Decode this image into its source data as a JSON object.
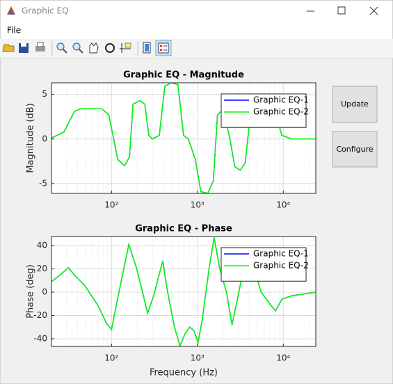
{
  "window": {
    "title": "Graphic EQ",
    "menu": [
      "File"
    ],
    "buttons": [
      "Update",
      "Configure"
    ]
  },
  "chart_data": [
    {
      "type": "line",
      "title": "Graphic EQ - Magnitude",
      "ylabel": "Magnitude (dB)",
      "x": [
        20,
        28,
        37,
        44,
        77,
        93,
        106,
        118,
        142,
        162,
        178,
        214,
        244,
        272,
        299,
        360,
        418,
        494,
        594,
        690,
        785,
        946,
        1097,
        1321,
        1532,
        1713,
        1988,
        2393,
        2723,
        3162,
        3597,
        4180,
        6650,
        8000,
        9640,
        12700,
        23900
      ],
      "series": [
        {
          "name": "Graphic EQ-1",
          "color": "#0000ff",
          "values": [
            0.1,
            0.8,
            3.1,
            3.4,
            3.4,
            2.7,
            0,
            -2.3,
            -3.0,
            -2.0,
            3.9,
            4.3,
            3.9,
            0.4,
            0,
            0.4,
            5.9,
            6.3,
            6.1,
            0.4,
            0,
            -2.3,
            -5.9,
            -6.1,
            -4.7,
            2.7,
            3.3,
            0,
            -3.1,
            -3.5,
            -2.7,
            3.1,
            3.9,
            3.1,
            0.4,
            0,
            0
          ]
        },
        {
          "name": "Graphic EQ-2",
          "color": "#00ff00",
          "values": [
            0.1,
            0.8,
            3.1,
            3.4,
            3.4,
            2.7,
            0,
            -2.3,
            -3.0,
            -2.0,
            3.9,
            4.3,
            3.9,
            0.4,
            0,
            0.4,
            5.9,
            6.3,
            6.1,
            0.4,
            0,
            -2.3,
            -5.9,
            -6.1,
            -4.7,
            2.7,
            3.3,
            0,
            -3.1,
            -3.5,
            -2.7,
            3.1,
            3.9,
            3.1,
            0.4,
            0,
            0
          ]
        }
      ],
      "xlim": [
        20,
        23900
      ],
      "ylim": [
        -6.1,
        6.3
      ],
      "xscale": "log",
      "xticks": [
        {
          "value": 100,
          "label": "10²"
        },
        {
          "value": 1000,
          "label": "10³"
        },
        {
          "value": 10000,
          "label": "10⁴"
        }
      ],
      "yticks": [
        -5,
        0,
        5
      ],
      "grid": true,
      "legend": "northeast"
    },
    {
      "type": "line",
      "title": "Graphic EQ - Phase",
      "xlabel": "Frequency (Hz)",
      "ylabel": "Phase (deg)",
      "x": [
        20,
        25.3,
        31.6,
        36.7,
        48.5,
        70.3,
        87.8,
        100,
        122,
        159,
        195,
        235,
        263,
        310,
        395,
        450,
        541,
        628,
        715,
        814,
        910,
        1018,
        1137,
        1372,
        1566,
        1811,
        2180,
        2531,
        3480,
        4580,
        5520,
        7290,
        8120,
        9640,
        12700,
        23900
      ],
      "series": [
        {
          "name": "Graphic EQ-1",
          "color": "#0000ff",
          "values": [
            9,
            15,
            21,
            15,
            6,
            -12,
            -27,
            -32,
            0,
            41,
            21,
            -3,
            -18,
            -3,
            27,
            0,
            -30,
            -46,
            -36,
            -30,
            -33,
            -43,
            -24,
            21,
            47,
            21,
            0,
            -28,
            21,
            21,
            0,
            -12,
            -16,
            -6,
            -3,
            0
          ]
        },
        {
          "name": "Graphic EQ-2",
          "color": "#00ff00",
          "values": [
            9,
            15,
            21,
            15,
            6,
            -12,
            -27,
            -32,
            0,
            41,
            21,
            -3,
            -18,
            -3,
            27,
            0,
            -30,
            -46,
            -36,
            -30,
            -33,
            -43,
            -24,
            21,
            47,
            21,
            0,
            -28,
            21,
            21,
            0,
            -12,
            -16,
            -6,
            -3,
            0
          ]
        }
      ],
      "xlim": [
        20,
        23900
      ],
      "ylim": [
        -46.6,
        47.8
      ],
      "xscale": "log",
      "xticks": [
        {
          "value": 100,
          "label": "10²"
        },
        {
          "value": 1000,
          "label": "10³"
        },
        {
          "value": 10000,
          "label": "10⁴"
        }
      ],
      "yticks": [
        -40,
        -20,
        0,
        20,
        40
      ],
      "grid": true,
      "legend": "northeast"
    }
  ]
}
